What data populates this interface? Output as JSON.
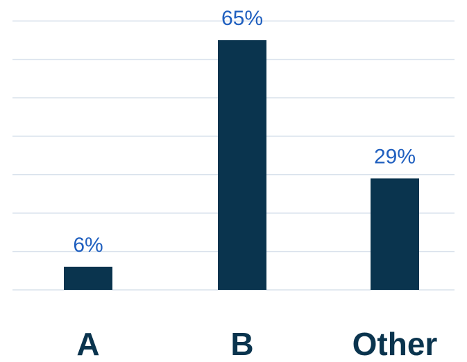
{
  "chart_data": {
    "type": "bar",
    "categories": [
      "A",
      "B",
      "Other"
    ],
    "values": [
      6,
      65,
      29
    ],
    "value_labels": [
      "6%",
      "65%",
      "29%"
    ],
    "ylim": [
      0,
      70
    ],
    "grid": true,
    "colors": {
      "bar": "#0a344e",
      "value_label": "#1f5fbf",
      "category_label": "#0a344e",
      "grid": "#d9e2ec"
    }
  }
}
